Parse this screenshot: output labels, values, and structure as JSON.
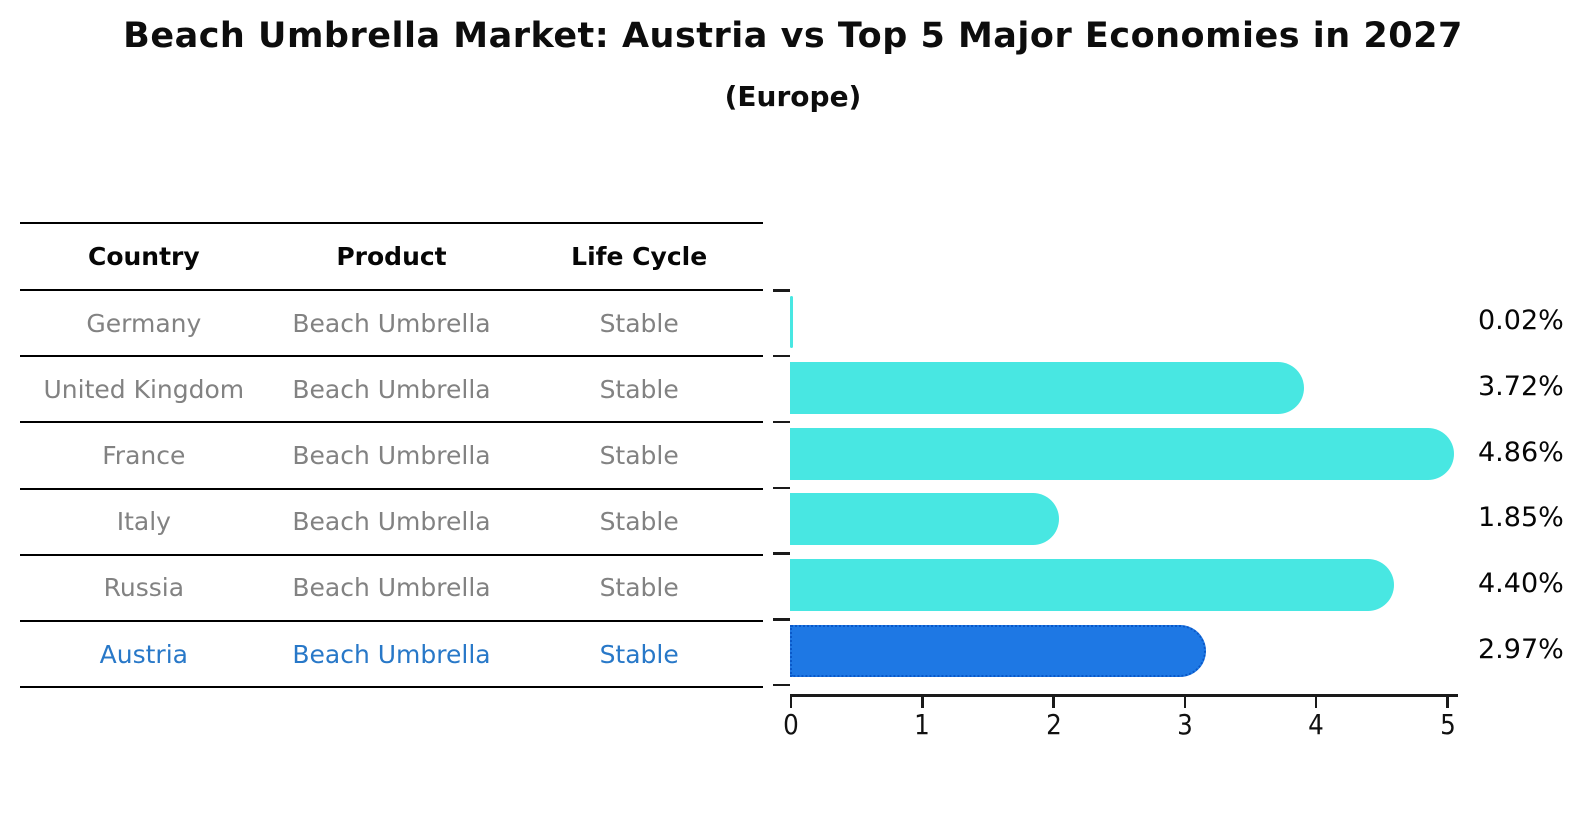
{
  "title": "Beach Umbrella Market: Austria vs Top 5 Major Economies in 2027",
  "subtitle": "(Europe)",
  "table": {
    "headers": {
      "country": "Country",
      "product": "Product",
      "life_cycle": "Life Cycle"
    },
    "rows": [
      {
        "country": "Germany",
        "product": "Beach Umbrella",
        "life_cycle": "Stable"
      },
      {
        "country": "United Kingdom",
        "product": "Beach Umbrella",
        "life_cycle": "Stable"
      },
      {
        "country": "France",
        "product": "Beach Umbrella",
        "life_cycle": "Stable"
      },
      {
        "country": "Italy",
        "product": "Beach Umbrella",
        "life_cycle": "Stable"
      },
      {
        "country": "Russia",
        "product": "Beach Umbrella",
        "life_cycle": "Stable"
      },
      {
        "country": "Austria",
        "product": "Beach Umbrella",
        "life_cycle": "Stable"
      }
    ],
    "highlight_row": "Austria"
  },
  "chart_data": {
    "type": "bar",
    "orientation": "horizontal",
    "title": "Beach Umbrella Market: Austria vs Top 5 Major Economies in 2027 (Europe)",
    "categories": [
      "Germany",
      "United Kingdom",
      "France",
      "Italy",
      "Russia",
      "Austria"
    ],
    "values": [
      0.02,
      3.72,
      4.86,
      1.85,
      4.4,
      2.97
    ],
    "value_labels": [
      "0.02%",
      "3.72%",
      "4.86%",
      "1.85%",
      "4.40%",
      "2.97%"
    ],
    "xlabel": "",
    "ylabel": "",
    "xlim": [
      0,
      5
    ],
    "xticks": [
      "0",
      "1",
      "2",
      "3",
      "4",
      "5"
    ],
    "grid": false,
    "legend": false,
    "bar_color": "#48e7e2",
    "highlight_index": 5,
    "highlight_color": "#1e78e4",
    "highlight_border_color": "#0a58c8",
    "text_color_muted": "#828282",
    "text_color_highlight": "#2878c8"
  }
}
